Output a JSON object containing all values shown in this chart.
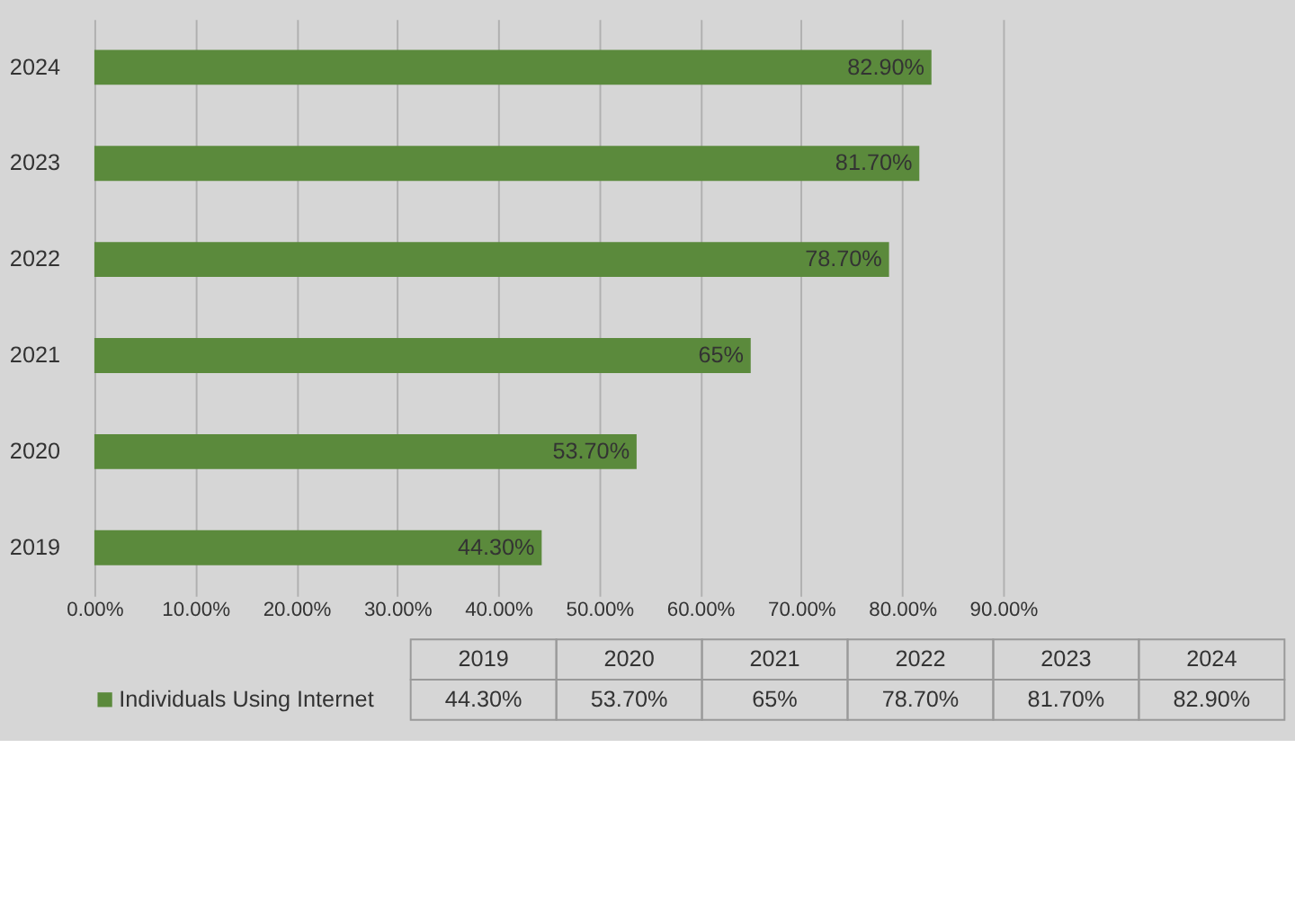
{
  "chart_data": {
    "type": "bar",
    "orientation": "horizontal",
    "categories": [
      "2024",
      "2023",
      "2022",
      "2021",
      "2020",
      "2019"
    ],
    "series": [
      {
        "name": "Individuals Using Internet",
        "color": "#5b8a3c",
        "values": [
          82.9,
          81.7,
          78.7,
          65,
          53.7,
          44.3
        ],
        "value_labels": [
          "82.90%",
          "81.70%",
          "78.70%",
          "65%",
          "53.70%",
          "44.30%"
        ]
      }
    ],
    "xlim": [
      0,
      90
    ],
    "xticks": [
      {
        "value": 0,
        "label": "0.00%"
      },
      {
        "value": 10,
        "label": "10.00%"
      },
      {
        "value": 20,
        "label": "20.00%"
      },
      {
        "value": 30,
        "label": "30.00%"
      },
      {
        "value": 40,
        "label": "40.00%"
      },
      {
        "value": 50,
        "label": "50.00%"
      },
      {
        "value": 60,
        "label": "60.00%"
      },
      {
        "value": 70,
        "label": "70.00%"
      },
      {
        "value": 80,
        "label": "80.00%"
      },
      {
        "value": 90,
        "label": "90.00%"
      }
    ],
    "grid": "x",
    "legend": "bottom"
  }
}
